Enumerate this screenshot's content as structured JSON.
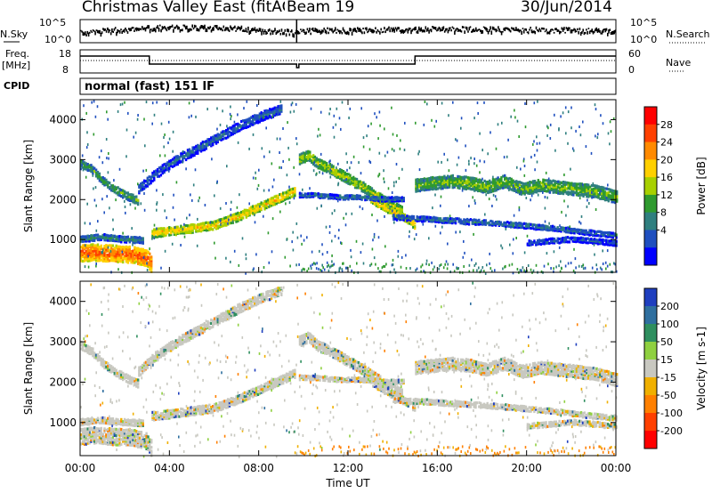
{
  "header": {
    "title": "Christmas Valley East (fitACF)",
    "beam": "Beam 19",
    "date": "30/Jun/2014"
  },
  "strips": {
    "nsky_label": "N.Sky",
    "nsearch_label": "N.Search",
    "noise_ticks": [
      "10^5",
      "10^0"
    ],
    "freq_label": "Freq.",
    "freq_unit": "[MHz]",
    "freq_ticks": [
      "18",
      "8"
    ],
    "nave_label": "Nave",
    "nave_ticks": [
      "60",
      "0"
    ],
    "cpid_label": "CPID",
    "cpid_value": "normal (fast) 151 IF"
  },
  "chart_data": [
    {
      "type": "heatmap",
      "name": "power-panel",
      "ylabel": "Slant Range [km]",
      "xlabel": "Time UT",
      "xlim": [
        0,
        24
      ],
      "ylim": [
        180,
        4500
      ],
      "xticks": [
        "00:00",
        "04:00",
        "08:00",
        "12:00",
        "16:00",
        "20:00",
        "00:00"
      ],
      "yticks": [
        1000,
        2000,
        3000,
        4000
      ],
      "colorbar": {
        "label": "Power [dB]",
        "ticks": [
          "28",
          "24",
          "20",
          "16",
          "12",
          "8",
          "4"
        ],
        "colors": [
          "#ff0000",
          "#ff4000",
          "#ff8a00",
          "#ffd000",
          "#a8d000",
          "#2f9a2f",
          "#2f7f7f",
          "#1f4fbf",
          "#0000ff"
        ]
      },
      "echo_bands": [
        {
          "t": [
            0.0,
            0.6,
            1.2,
            1.8,
            2.4,
            3.0,
            3.2
          ],
          "range": [
            700,
            720,
            700,
            680,
            660,
            560,
            380
          ],
          "width": 420,
          "power": 27
        },
        {
          "t": [
            0.0,
            0.5,
            1.0,
            1.6,
            2.2,
            2.8
          ],
          "range": [
            1050,
            1080,
            1100,
            1060,
            1040,
            1020
          ],
          "width": 160,
          "power": 10
        },
        {
          "t": [
            3.2,
            4.0,
            5.0,
            6.0,
            7.0,
            8.0,
            9.0,
            9.6
          ],
          "range": [
            1200,
            1250,
            1320,
            1400,
            1600,
            1850,
            2100,
            2250
          ],
          "width": 220,
          "power": 21
        },
        {
          "t": [
            0.0,
            0.5,
            1.0,
            1.5,
            2.0,
            2.6
          ],
          "range": [
            2950,
            2800,
            2500,
            2300,
            2150,
            2000
          ],
          "width": 200,
          "power": 13
        },
        {
          "t": [
            2.6,
            3.4,
            4.2,
            5.2,
            6.2,
            7.2,
            8.2,
            9.0
          ],
          "range": [
            2300,
            2700,
            3000,
            3300,
            3600,
            3900,
            4150,
            4300
          ],
          "width": 240,
          "power": 7
        },
        {
          "t": [
            9.8,
            10.2,
            10.6,
            11.2,
            12.0,
            12.8,
            13.6,
            14.4
          ],
          "range": [
            3050,
            3150,
            2950,
            2800,
            2550,
            2300,
            2000,
            1750
          ],
          "width": 260,
          "power": 17
        },
        {
          "t": [
            13.0,
            13.6,
            14.2,
            14.8,
            15.0
          ],
          "range": [
            2050,
            1850,
            1650,
            1500,
            1350
          ],
          "width": 200,
          "power": 22
        },
        {
          "t": [
            15.0,
            15.8,
            16.6,
            17.4,
            18.2,
            19.0,
            19.8,
            20.6,
            21.4,
            22.2,
            23.0,
            24.0
          ],
          "range": [
            2400,
            2450,
            2500,
            2450,
            2350,
            2500,
            2300,
            2400,
            2350,
            2300,
            2250,
            2100
          ],
          "width": 320,
          "power": 15
        },
        {
          "t": [
            14.0,
            15.5,
            17.0,
            18.5,
            20.0,
            21.5,
            23.0,
            24.0
          ],
          "range": [
            1600,
            1550,
            1500,
            1450,
            1380,
            1300,
            1200,
            1150
          ],
          "width": 140,
          "power": 8
        },
        {
          "t": [
            20.0,
            21.0,
            22.0,
            23.0,
            24.0
          ],
          "range": [
            950,
            1000,
            1050,
            1000,
            950
          ],
          "width": 140,
          "power": 6
        },
        {
          "t": [
            9.8,
            10.5,
            11.5,
            12.5,
            13.5,
            14.5
          ],
          "range": [
            2150,
            2150,
            2100,
            2100,
            2050,
            2050
          ],
          "width": 120,
          "power": 8
        }
      ]
    },
    {
      "type": "heatmap",
      "name": "velocity-panel",
      "ylabel": "Slant Range [km]",
      "xlabel": "Time UT",
      "xlim": [
        0,
        24
      ],
      "ylim": [
        180,
        4500
      ],
      "xticks": [
        "00:00",
        "04:00",
        "08:00",
        "12:00",
        "16:00",
        "20:00",
        "00:00"
      ],
      "yticks": [
        1000,
        2000,
        3000,
        4000
      ],
      "colorbar": {
        "label": "Velocity [m s-1]",
        "ticks": [
          "200",
          "100",
          "50",
          "15",
          "-15",
          "-50",
          "-100",
          "-200"
        ],
        "colors": [
          "#1f3fbf",
          "#2f6f9f",
          "#2f8f5f",
          "#8fd040",
          "#c8c8c0",
          "#f0b000",
          "#ff8000",
          "#ff4000",
          "#ff0000"
        ]
      }
    }
  ]
}
